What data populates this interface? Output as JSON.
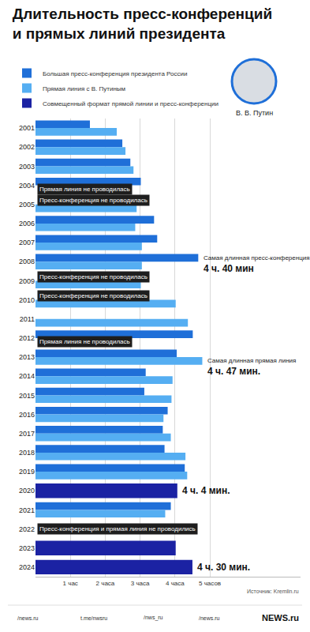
{
  "chart_data": {
    "type": "bar",
    "orientation": "horizontal",
    "title": "Длительность пресс-конференций\nи прямых линий президента",
    "person_label": "В. В. Путин",
    "source": "Источник: Kremlin.ru",
    "footer": [
      "/news.ru",
      "t.me/nwsru",
      "/nws_ru",
      "/news.ru",
      "NEWS.ru"
    ],
    "categories": [
      "2001",
      "2002",
      "2003",
      "2004",
      "2005",
      "2006",
      "2007",
      "2008",
      "2009",
      "2010",
      "2011",
      "2012",
      "2013",
      "2014",
      "2015",
      "2016",
      "2017",
      "2018",
      "2019",
      "2020",
      "2021",
      "2022",
      "2023",
      "2024"
    ],
    "series": [
      {
        "name": "Большая пресс-конференция президента России",
        "color": "#1f6fd8",
        "values": [
          1.56,
          2.49,
          2.72,
          3.02,
          null,
          3.4,
          3.49,
          4.667,
          null,
          null,
          null,
          4.51,
          4.05,
          3.16,
          3.12,
          3.79,
          3.65,
          3.7,
          4.28,
          null,
          3.88,
          null,
          null,
          null
        ]
      },
      {
        "name": "Прямая линия с В. Путиным",
        "color": "#55aef2",
        "values": [
          2.33,
          2.58,
          2.81,
          null,
          2.9,
          2.86,
          3.05,
          3.05,
          3.02,
          4.02,
          4.37,
          null,
          4.783,
          3.93,
          3.9,
          3.67,
          3.88,
          4.3,
          4.35,
          null,
          3.72,
          null,
          null,
          null
        ]
      },
      {
        "name": "Совмещенный формат прямой линии и пресс-конференции",
        "color": "#1b22a3",
        "values": [
          null,
          null,
          null,
          null,
          null,
          null,
          null,
          null,
          null,
          null,
          null,
          null,
          null,
          null,
          null,
          null,
          null,
          null,
          null,
          4.067,
          null,
          null,
          4.02,
          4.5
        ]
      }
    ],
    "xlim": [
      0,
      7.6
    ],
    "xticks": [
      {
        "value": 1,
        "label": "1 час"
      },
      {
        "value": 2,
        "label": "2 часа"
      },
      {
        "value": 3,
        "label": "3 часа"
      },
      {
        "value": 4,
        "label": "4 часа"
      },
      {
        "value": 5,
        "label": "5 часов"
      }
    ],
    "grid": true,
    "legend": "top-left",
    "notices": [
      {
        "category": "2004",
        "text": "Прямая линия не проводилась"
      },
      {
        "category": "2005",
        "text": "Пресс-конференция не проводилась"
      },
      {
        "category": "2009",
        "text": "Пресс-конференция не проводилась"
      },
      {
        "category": "2010",
        "text": "Пресс-конференция не проводилась"
      },
      {
        "category": "2012",
        "text": "Прямая линия не проводилась"
      },
      {
        "category": "2022",
        "text": "Пресс-конференция и прямая линия не проводились"
      }
    ],
    "callouts": [
      {
        "category": "2008",
        "series": "Большая пресс-конференция президента России",
        "text": "Самая длинная пресс-конференция",
        "value": 4.667,
        "value_label": "4 ч. 40 мин"
      },
      {
        "category": "2013",
        "series": "Прямая линия с В. Путиным",
        "text": "Самая длинная прямая линия",
        "value": 4.783,
        "value_label": "4 ч. 47 мин."
      },
      {
        "category": "2020",
        "series": "Совмещенный формат прямой линии и пресс-конференции",
        "value": 4.067,
        "value_label": "4 ч. 4 мин."
      },
      {
        "category": "2024",
        "series": "Совмещенный формат прямой линии и пресс-конференции",
        "value": 4.5,
        "value_label": "4 ч. 30 мин."
      }
    ]
  }
}
